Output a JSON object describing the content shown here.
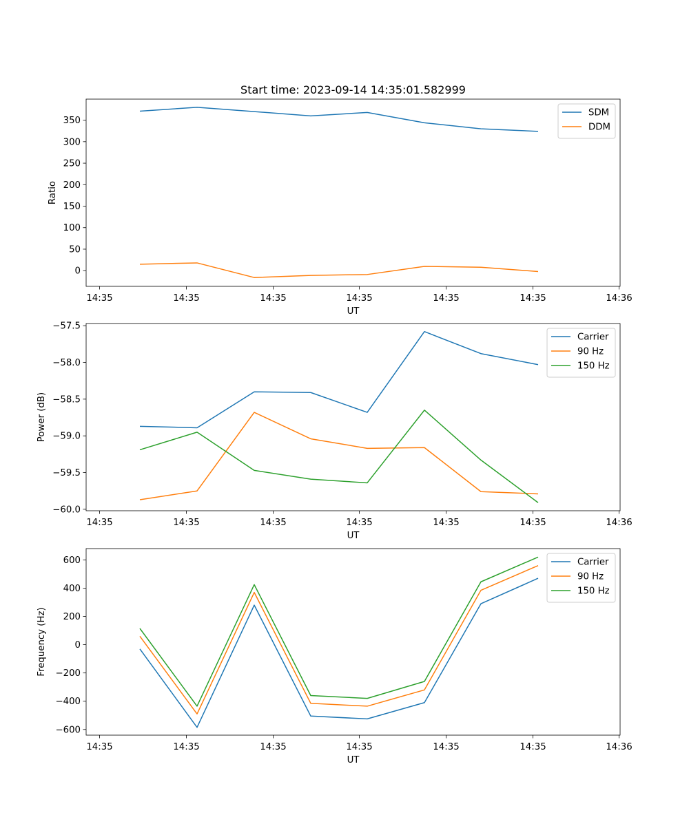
{
  "figure_title": "Start time: 2023-09-14 14:35:01.582999",
  "colors": {
    "c0": "#1f77b4",
    "c1": "#ff7f0e",
    "c2": "#2ca02c"
  },
  "chart_data": [
    {
      "type": "line",
      "title": "Start time: 2023-09-14 14:35:01.582999",
      "xlabel": "UT",
      "ylabel": "Ratio",
      "x_ticklabels": [
        "14:35",
        "14:35",
        "14:35",
        "14:35",
        "14:35",
        "14:35",
        "14:35"
      ],
      "x_ticklabel_last": "14:36",
      "y_ticks": [
        0,
        50,
        100,
        150,
        200,
        250,
        300,
        350
      ],
      "y_ticklabels": [
        "0",
        "50",
        "100",
        "150",
        "200",
        "250",
        "300",
        "350"
      ],
      "ylim": [
        -36.5,
        399
      ],
      "legend_location": "upper right",
      "series": [
        {
          "name": "SDM",
          "color": "#1f77b4",
          "values": [
            371,
            380,
            370,
            360,
            368,
            344,
            330,
            324
          ]
        },
        {
          "name": "DDM",
          "color": "#ff7f0e",
          "values": [
            15,
            18,
            -16,
            -11,
            -9,
            10,
            8,
            -2
          ]
        }
      ]
    },
    {
      "type": "line",
      "xlabel": "UT",
      "ylabel": "Power (dB)",
      "x_ticklabels": [
        "14:35",
        "14:35",
        "14:35",
        "14:35",
        "14:35",
        "14:35",
        "14:35"
      ],
      "x_ticklabel_last": "14:36",
      "y_ticks": [
        -60.0,
        -59.5,
        -59.0,
        -58.5,
        -58.0,
        -57.5
      ],
      "y_ticklabels": [
        "−60.0",
        "−59.5",
        "−59.0",
        "−58.5",
        "−58.0",
        "−57.5"
      ],
      "ylim": [
        -60.02,
        -57.47
      ],
      "legend_location": "upper right",
      "series": [
        {
          "name": "Carrier",
          "color": "#1f77b4",
          "values": [
            -58.87,
            -58.89,
            -58.4,
            -58.41,
            -58.68,
            -57.58,
            -57.88,
            -58.03
          ]
        },
        {
          "name": "90 Hz",
          "color": "#ff7f0e",
          "values": [
            -59.87,
            -59.75,
            -58.68,
            -59.04,
            -59.17,
            -59.16,
            -59.76,
            -59.79
          ]
        },
        {
          "name": "150 Hz",
          "color": "#2ca02c",
          "values": [
            -59.19,
            -58.95,
            -59.47,
            -59.59,
            -59.64,
            -58.65,
            -59.33,
            -59.91
          ]
        }
      ]
    },
    {
      "type": "line",
      "xlabel": "UT",
      "ylabel": "Frequency (Hz)",
      "x_ticklabels": [
        "14:35",
        "14:35",
        "14:35",
        "14:35",
        "14:35",
        "14:35",
        "14:35"
      ],
      "x_ticklabel_last": "14:36",
      "y_ticks": [
        -600,
        -400,
        -200,
        0,
        200,
        400,
        600
      ],
      "y_ticklabels": [
        "−600",
        "−400",
        "−200",
        "0",
        "200",
        "400",
        "600"
      ],
      "ylim": [
        -640,
        680
      ],
      "legend_location": "upper right",
      "series": [
        {
          "name": "Carrier",
          "color": "#1f77b4",
          "values": [
            -30,
            -585,
            280,
            -505,
            -525,
            -410,
            290,
            470
          ]
        },
        {
          "name": "90 Hz",
          "color": "#ff7f0e",
          "values": [
            60,
            -490,
            370,
            -415,
            -435,
            -320,
            385,
            560
          ]
        },
        {
          "name": "150 Hz",
          "color": "#2ca02c",
          "values": [
            115,
            -435,
            425,
            -360,
            -380,
            -260,
            445,
            620
          ]
        }
      ]
    }
  ]
}
